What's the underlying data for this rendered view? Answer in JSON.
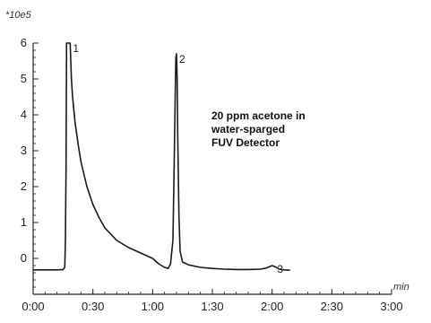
{
  "chart_data": {
    "type": "line",
    "title": "",
    "xlabel": "min",
    "ylabel": "",
    "y_multiplier_label": "*10e5",
    "xlim": [
      0,
      3
    ],
    "ylim": [
      -1,
      6
    ],
    "x_ticks": [
      {
        "value": 0,
        "label": "0:00"
      },
      {
        "value": 0.5,
        "label": "0:30"
      },
      {
        "value": 1.0,
        "label": "1:00"
      },
      {
        "value": 1.5,
        "label": "1:30"
      },
      {
        "value": 2.0,
        "label": "2:00"
      },
      {
        "value": 2.5,
        "label": "2:30"
      },
      {
        "value": 3.0,
        "label": "3:00"
      }
    ],
    "y_ticks": [
      {
        "value": 0,
        "label": "0"
      },
      {
        "value": 1,
        "label": "1"
      },
      {
        "value": 2,
        "label": "2"
      },
      {
        "value": 3,
        "label": "3"
      },
      {
        "value": 4,
        "label": "4"
      },
      {
        "value": 5,
        "label": "5"
      },
      {
        "value": 6,
        "label": "6"
      }
    ],
    "grid": false,
    "annotation_lines": [
      "20 ppm acetone in",
      "water-sparged",
      "FUV Detector"
    ],
    "peaks": [
      {
        "label": "1",
        "x": 0.31,
        "y": 6.0
      },
      {
        "label": "2",
        "x": 1.2,
        "y": 5.7
      },
      {
        "label": "3",
        "x": 2.02,
        "y": -0.15
      }
    ],
    "series": [
      {
        "x": [
          0.0,
          0.1,
          0.2,
          0.25,
          0.265,
          0.27,
          0.275,
          0.28,
          0.29,
          0.3,
          0.305,
          0.31,
          0.32,
          0.33,
          0.35,
          0.38,
          0.4,
          0.45,
          0.5,
          0.55,
          0.6,
          0.7,
          0.8,
          0.9,
          1.0,
          1.05,
          1.1,
          1.13,
          1.15,
          1.17,
          1.18,
          1.19,
          1.195,
          1.2,
          1.205,
          1.21,
          1.22,
          1.23,
          1.25,
          1.3,
          1.4,
          1.5,
          1.6,
          1.7,
          1.8,
          1.9,
          1.95,
          2.0,
          2.03,
          2.06,
          2.1,
          2.15
        ],
        "y": [
          -0.32,
          -0.32,
          -0.32,
          -0.31,
          -0.25,
          0.5,
          2.5,
          6.0,
          6.0,
          6.0,
          6.0,
          6.0,
          5.0,
          4.5,
          3.8,
          3.1,
          2.7,
          2.0,
          1.5,
          1.15,
          0.85,
          0.5,
          0.3,
          0.15,
          0.0,
          -0.15,
          -0.25,
          -0.28,
          -0.15,
          0.5,
          2.5,
          4.8,
          5.6,
          5.7,
          5.0,
          3.5,
          1.2,
          0.2,
          -0.1,
          -0.18,
          -0.25,
          -0.28,
          -0.3,
          -0.31,
          -0.31,
          -0.3,
          -0.27,
          -0.2,
          -0.24,
          -0.3,
          -0.32,
          -0.33
        ]
      }
    ]
  }
}
